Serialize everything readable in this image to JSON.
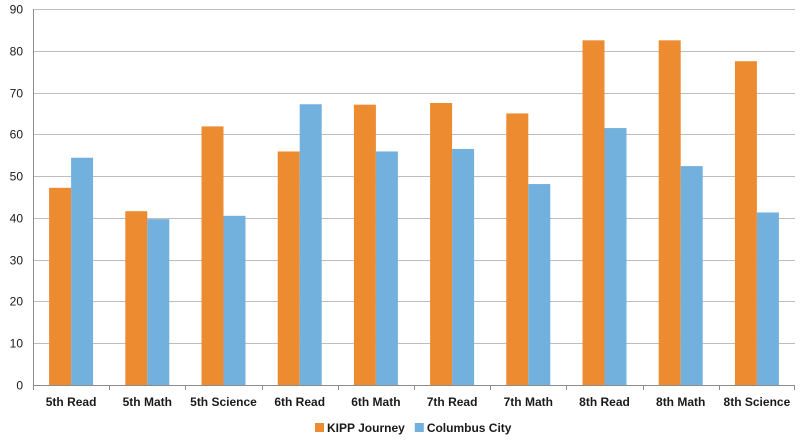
{
  "chart_data": {
    "type": "bar",
    "title": "",
    "xlabel": "",
    "ylabel": "",
    "ylim": [
      0,
      90
    ],
    "yticks": [
      0,
      10,
      20,
      30,
      40,
      50,
      60,
      70,
      80,
      90
    ],
    "grid": true,
    "legend_position": "bottom",
    "categories": [
      "5th Read",
      "5th Math",
      "5th Science",
      "6th Read",
      "6th Math",
      "7th Read",
      "7th Math",
      "8th Read",
      "8th Math",
      "8th Science"
    ],
    "series": [
      {
        "name": "KIPP Journey",
        "color": "#ED8B30",
        "values": [
          47.2,
          41.6,
          61.9,
          55.9,
          67.1,
          67.5,
          65.0,
          82.5,
          82.5,
          77.5
        ]
      },
      {
        "name": "Columbus City",
        "color": "#72B1DE",
        "values": [
          54.4,
          39.7,
          40.5,
          67.2,
          55.9,
          56.5,
          48.1,
          61.5,
          52.4,
          41.3
        ]
      }
    ]
  }
}
